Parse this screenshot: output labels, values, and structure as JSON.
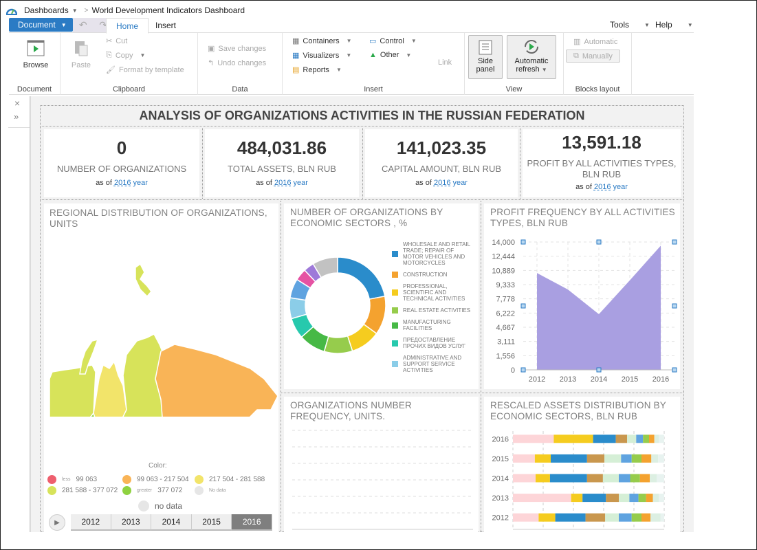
{
  "topbar": {
    "dashboards": "Dashboards",
    "separator": ">",
    "breadcrumb": "World Development Indicators Dashboard"
  },
  "ribbon_tabs": {
    "document": "Document",
    "home": "Home",
    "insert": "Insert",
    "tools": "Tools",
    "help": "Help"
  },
  "ribbon": {
    "document": {
      "browse": "Browse",
      "label": "Document"
    },
    "clipboard": {
      "paste": "Paste",
      "cut": "Cut",
      "copy": "Copy",
      "format": "Format by template",
      "label": "Clipboard"
    },
    "data": {
      "save": "Save changes",
      "undo": "Undo changes",
      "label": "Data"
    },
    "insert": {
      "containers": "Containers",
      "visualizers": "Visualizers",
      "reports": "Reports",
      "control": "Control",
      "other": "Other",
      "link": "Link",
      "label": "Insert"
    },
    "view": {
      "side_panel_1": "Side",
      "side_panel_2": "panel",
      "auto_refresh_1": "Automatic",
      "auto_refresh_2": "refresh",
      "label": "View"
    },
    "blocks": {
      "automatic": "Automatic",
      "manually": "Manually",
      "label": "Blocks layout"
    }
  },
  "dashboard": {
    "title": "ANALYSIS OF ORGANIZATIONS ACTIVITIES IN THE RUSSIAN FEDERATION",
    "kpis": [
      {
        "value": "0",
        "label": "NUMBER OF ORGANIZATIONS",
        "prefix": "as of",
        "year": "2016",
        "suffix": "year"
      },
      {
        "value": "484,031.86",
        "label": "TOTAL ASSETS, BLN RUB",
        "prefix": "as of",
        "year": "2016",
        "suffix": "year"
      },
      {
        "value": "141,023.35",
        "label": "CAPITAL AMOUNT, BLN RUB",
        "prefix": "as of",
        "year": "2016",
        "suffix": "year"
      },
      {
        "value": "13,591.18",
        "label": "PROFIT BY ALL ACTIVITIES TYPES, BLN RUB",
        "prefix": "as of",
        "year": "2016",
        "suffix": "year"
      }
    ],
    "map": {
      "title": "REGIONAL DISTRIBUTION OF ORGANIZATIONS, UNITS",
      "legend_title": "Color:",
      "legend": [
        {
          "kind": "less",
          "range": "99 063",
          "color": "#ee5f6e"
        },
        {
          "kind": "",
          "range": "99 063  -  217 504",
          "color": "#f9b457"
        },
        {
          "kind": "",
          "range": "217 504  -  281 588",
          "color": "#f2e46a"
        },
        {
          "kind": "",
          "range": "281 588  -  377 072",
          "color": "#d7e35a"
        },
        {
          "kind": "greater",
          "range": "377 072",
          "color": "#8fd240"
        },
        {
          "kind": "",
          "range": "No data",
          "color": "#e6e6e6"
        }
      ],
      "no_data": "no data",
      "years": [
        "2012",
        "2013",
        "2014",
        "2015",
        "2016"
      ],
      "selected_year": "2016"
    },
    "org_freq": {
      "title": "ORGANIZATIONS NUMBER FREQUENCY, UNITS."
    }
  },
  "chart_data": [
    {
      "type": "pie",
      "title": "NUMBER OF ORGANIZATIONS BY ECONOMIC SECTORS , %",
      "legend_position": "right",
      "slices": [
        {
          "label": "WHOLESALE AND RETAIL TRADE; REPAIR OF MOTOR VEHICLES AND MOTORCYCLES",
          "value": 22,
          "color": "#2a8ccb"
        },
        {
          "label": "CONSTRUCTION",
          "value": 13,
          "color": "#f4a22f"
        },
        {
          "label": "PROFESSIONAL, SCIENTIFIC AND TECHNICAL ACTIVITIES",
          "value": 10,
          "color": "#f5cc1f"
        },
        {
          "label": "REAL ESTATE ACTIVITIES",
          "value": 9.5,
          "color": "#96cc4c"
        },
        {
          "label": "MANUFACTURING FACILITIES",
          "value": 9,
          "color": "#47b946"
        },
        {
          "label": "ПРЕДОСТАВЛЕНИЕ ПРОЧИХ ВИДОВ УСЛУГ",
          "value": 7,
          "color": "#27c9ad"
        },
        {
          "label": "ADMINISTRATIVE AND SUPPORT SERVICE ACTIVITIES",
          "value": 7,
          "color": "#8bcde8"
        },
        {
          "label": "",
          "value": 6.5,
          "color": "#5fa3e0"
        },
        {
          "label": "",
          "value": 4,
          "color": "#e552a3"
        },
        {
          "label": "",
          "value": 3.5,
          "color": "#9e79d9"
        },
        {
          "label": "",
          "value": 8.5,
          "color": "#c2c2c2"
        }
      ]
    },
    {
      "type": "area",
      "title": "PROFIT FREQUENCY BY ALL ACTIVITIES TYPES, BLN RUB",
      "x": [
        "2012",
        "2013",
        "2014",
        "2015",
        "2016"
      ],
      "series": [
        {
          "name": "Profit",
          "values": [
            10600,
            8800,
            6100,
            9800,
            13600
          ],
          "color": "#a99fe1"
        }
      ],
      "ylim": [
        0,
        14000
      ],
      "yticks": [
        "0",
        "1,556",
        "3,111",
        "4,667",
        "6,222",
        "7,778",
        "9,333",
        "10,889",
        "12,444",
        "14,000"
      ],
      "grid": true
    },
    {
      "type": "bar",
      "orientation": "horizontal-stacked-100",
      "title": "RESCALED ASSETS DISTRIBUTION BY ECONOMIC SECTORS, BLN RUB",
      "categories": [
        "2016",
        "2015",
        "2014",
        "2013",
        "2012"
      ],
      "series": [
        {
          "name": "s1",
          "color": "#fdd5d8",
          "values": [
            27,
            14.5,
            15,
            38.5,
            17
          ]
        },
        {
          "name": "s2",
          "color": "#f5cc1f",
          "values": [
            26,
            10.5,
            9.5,
            7.5,
            11
          ]
        },
        {
          "name": "s3",
          "color": "#2a8ccb",
          "values": [
            15,
            24,
            24.5,
            15.5,
            20
          ]
        },
        {
          "name": "s4",
          "color": "#c9974e",
          "values": [
            7.5,
            11.5,
            10.5,
            8.5,
            13
          ]
        },
        {
          "name": "s5",
          "color": "#d5efd6",
          "values": [
            6,
            11,
            10.5,
            7,
            9
          ]
        },
        {
          "name": "s6",
          "color": "#5fa3e0",
          "values": [
            4.5,
            7,
            7.5,
            6,
            8.5
          ]
        },
        {
          "name": "s7",
          "color": "#96cc4c",
          "values": [
            4,
            6.5,
            6.5,
            5,
            6.5
          ]
        },
        {
          "name": "s8",
          "color": "#f4a22f",
          "values": [
            3.5,
            6.5,
            6.5,
            4.5,
            6
          ]
        },
        {
          "name": "s9",
          "color": "#dcefe2",
          "values": [
            3,
            4.5,
            4.5,
            4,
            6.5
          ]
        },
        {
          "name": "s10",
          "color": "#e8f3f0",
          "values": [
            3.5,
            4,
            5,
            3.5,
            2.5
          ]
        }
      ],
      "grid": true
    }
  ]
}
